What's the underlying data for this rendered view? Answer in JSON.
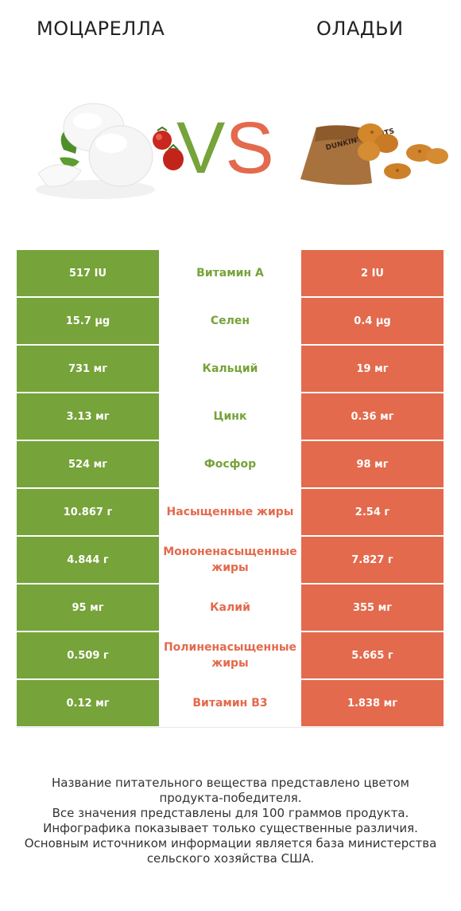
{
  "header": {
    "left_title": "МОЦАРЕЛЛА",
    "right_title": "ОЛАДЬИ",
    "vs_v": "V",
    "vs_s": "S"
  },
  "colors": {
    "left_product": "#76a33a",
    "right_product": "#e36a4d"
  },
  "rows": [
    {
      "left": "517 IU",
      "nutrient": "Витамин A",
      "right": "2 IU",
      "winner": "left"
    },
    {
      "left": "15.7 µg",
      "nutrient": "Селен",
      "right": "0.4 µg",
      "winner": "left"
    },
    {
      "left": "731 мг",
      "nutrient": "Кальций",
      "right": "19 мг",
      "winner": "left"
    },
    {
      "left": "3.13 мг",
      "nutrient": "Цинк",
      "right": "0.36 мг",
      "winner": "left"
    },
    {
      "left": "524 мг",
      "nutrient": "Фосфор",
      "right": "98 мг",
      "winner": "left"
    },
    {
      "left": "10.867 г",
      "nutrient": "Насыщенные жиры",
      "right": "2.54 г",
      "winner": "right"
    },
    {
      "left": "4.844 г",
      "nutrient": "Мононенасыщенные жиры",
      "right": "7.827 г",
      "winner": "right"
    },
    {
      "left": "95 мг",
      "nutrient": "Калий",
      "right": "355 мг",
      "winner": "right"
    },
    {
      "left": "0.509 г",
      "nutrient": "Полиненасыщенные жиры",
      "right": "5.665 г",
      "winner": "right"
    },
    {
      "left": "0.12 мг",
      "nutrient": "Витамин B3",
      "right": "1.838 мг",
      "winner": "right"
    }
  ],
  "footer": {
    "line1": "Название питательного вещества представлено цветом",
    "line2": "продукта-победителя.",
    "line3": "Все значения представлены для 100 граммов продукта.",
    "line4": "Инфографика показывает только существенные различия.",
    "line5": "Основным источником информации является база министерства",
    "line6": "сельского хозяйства США."
  },
  "images": {
    "left": "mozzarella-image",
    "right": "hash-browns-image",
    "right_bag_text": "DUNKIN' DONUTS"
  }
}
